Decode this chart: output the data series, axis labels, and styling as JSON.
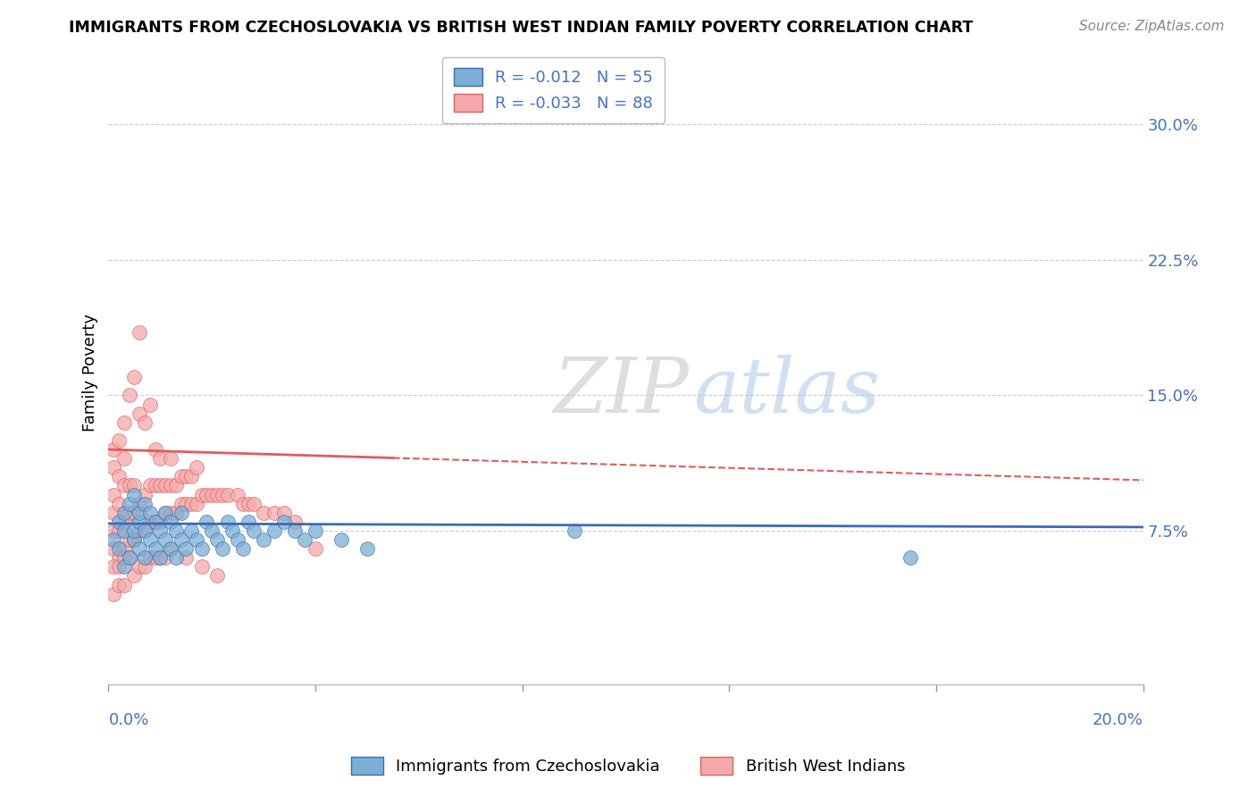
{
  "title": "IMMIGRANTS FROM CZECHOSLOVAKIA VS BRITISH WEST INDIAN FAMILY POVERTY CORRELATION CHART",
  "source": "Source: ZipAtlas.com",
  "ylabel": "Family Poverty",
  "xlim": [
    0.0,
    0.2
  ],
  "ylim": [
    -0.01,
    0.335
  ],
  "ytick_vals": [
    0.075,
    0.15,
    0.225,
    0.3
  ],
  "ytick_labels": [
    "7.5%",
    "15.0%",
    "22.5%",
    "30.0%"
  ],
  "legend_r1": "R = -0.012",
  "legend_n1": "N = 55",
  "legend_r2": "R = -0.033",
  "legend_n2": "N = 88",
  "legend_label1": "Immigrants from Czechoslovakia",
  "legend_label2": "British West Indians",
  "blue_color": "#7BAFD4",
  "pink_color": "#F4AAAA",
  "trend_blue_color": "#3B6BB5",
  "trend_pink_color": "#E05C5C",
  "text_blue": "#4472C4",
  "watermark_text": "ZIPatlas",
  "blue_trend_y0": 0.079,
  "blue_trend_y1": 0.077,
  "pink_trend_y0": 0.12,
  "pink_trend_y1": 0.103,
  "blue_scatter_x": [
    0.001,
    0.002,
    0.002,
    0.003,
    0.003,
    0.003,
    0.004,
    0.004,
    0.005,
    0.005,
    0.005,
    0.006,
    0.006,
    0.006,
    0.007,
    0.007,
    0.007,
    0.008,
    0.008,
    0.009,
    0.009,
    0.01,
    0.01,
    0.011,
    0.011,
    0.012,
    0.012,
    0.013,
    0.013,
    0.014,
    0.014,
    0.015,
    0.016,
    0.017,
    0.018,
    0.019,
    0.02,
    0.021,
    0.022,
    0.023,
    0.024,
    0.025,
    0.026,
    0.027,
    0.028,
    0.03,
    0.032,
    0.034,
    0.036,
    0.038,
    0.04,
    0.045,
    0.05,
    0.09,
    0.155
  ],
  "blue_scatter_y": [
    0.07,
    0.065,
    0.08,
    0.055,
    0.075,
    0.085,
    0.06,
    0.09,
    0.07,
    0.075,
    0.095,
    0.065,
    0.08,
    0.085,
    0.06,
    0.075,
    0.09,
    0.07,
    0.085,
    0.065,
    0.08,
    0.06,
    0.075,
    0.07,
    0.085,
    0.065,
    0.08,
    0.06,
    0.075,
    0.07,
    0.085,
    0.065,
    0.075,
    0.07,
    0.065,
    0.08,
    0.075,
    0.07,
    0.065,
    0.08,
    0.075,
    0.07,
    0.065,
    0.08,
    0.075,
    0.07,
    0.075,
    0.08,
    0.075,
    0.07,
    0.075,
    0.07,
    0.065,
    0.075,
    0.06
  ],
  "pink_scatter_x": [
    0.001,
    0.001,
    0.001,
    0.001,
    0.001,
    0.001,
    0.002,
    0.002,
    0.002,
    0.002,
    0.002,
    0.003,
    0.003,
    0.003,
    0.003,
    0.003,
    0.004,
    0.004,
    0.004,
    0.004,
    0.005,
    0.005,
    0.005,
    0.005,
    0.006,
    0.006,
    0.006,
    0.006,
    0.007,
    0.007,
    0.007,
    0.008,
    0.008,
    0.008,
    0.009,
    0.009,
    0.009,
    0.01,
    0.01,
    0.01,
    0.011,
    0.011,
    0.012,
    0.012,
    0.012,
    0.013,
    0.013,
    0.014,
    0.014,
    0.015,
    0.015,
    0.016,
    0.016,
    0.017,
    0.017,
    0.018,
    0.019,
    0.02,
    0.021,
    0.022,
    0.023,
    0.025,
    0.026,
    0.027,
    0.028,
    0.03,
    0.032,
    0.034,
    0.036,
    0.04,
    0.001,
    0.001,
    0.002,
    0.002,
    0.003,
    0.003,
    0.004,
    0.005,
    0.006,
    0.007,
    0.008,
    0.009,
    0.01,
    0.011,
    0.012,
    0.015,
    0.018,
    0.021
  ],
  "pink_scatter_y": [
    0.065,
    0.075,
    0.085,
    0.095,
    0.11,
    0.12,
    0.06,
    0.075,
    0.09,
    0.105,
    0.125,
    0.065,
    0.08,
    0.1,
    0.115,
    0.135,
    0.07,
    0.085,
    0.1,
    0.15,
    0.07,
    0.085,
    0.1,
    0.16,
    0.075,
    0.09,
    0.14,
    0.185,
    0.075,
    0.095,
    0.135,
    0.08,
    0.1,
    0.145,
    0.08,
    0.1,
    0.12,
    0.08,
    0.1,
    0.115,
    0.085,
    0.1,
    0.085,
    0.1,
    0.115,
    0.085,
    0.1,
    0.09,
    0.105,
    0.09,
    0.105,
    0.09,
    0.105,
    0.09,
    0.11,
    0.095,
    0.095,
    0.095,
    0.095,
    0.095,
    0.095,
    0.095,
    0.09,
    0.09,
    0.09,
    0.085,
    0.085,
    0.085,
    0.08,
    0.065,
    0.055,
    0.04,
    0.055,
    0.045,
    0.06,
    0.045,
    0.06,
    0.05,
    0.055,
    0.055,
    0.06,
    0.06,
    0.06,
    0.06,
    0.065,
    0.06,
    0.055,
    0.05
  ]
}
